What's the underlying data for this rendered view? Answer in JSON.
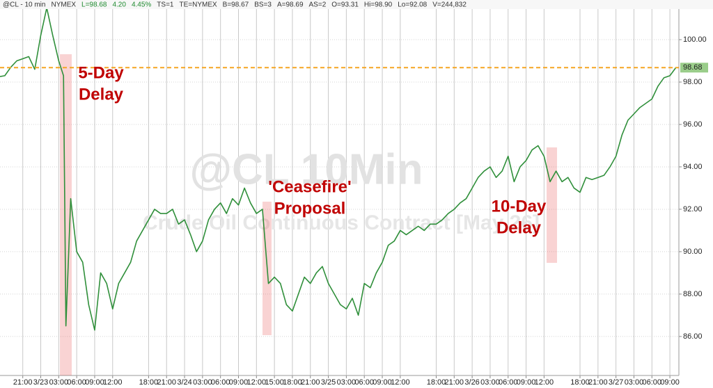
{
  "chart_data": {
    "type": "line",
    "header": [
      "@CL - 10 min",
      "NYMEX",
      "L=98.68",
      "4.20",
      "4.45%",
      "TS=1",
      "TE=NYMEX",
      "B=98.67",
      "BS=3",
      "A=98.69",
      "AS=2",
      "O=93.31",
      "Hi=98.90",
      "Lo=92.08",
      "V=244,832"
    ],
    "watermark": [
      "@CL 10Min",
      "Crude Oil Continuous Contract [May 26]"
    ],
    "annotations": [
      {
        "lines": [
          "5-Day",
          "Delay"
        ]
      },
      {
        "lines": [
          "'Ceasefire'",
          "Proposal"
        ]
      },
      {
        "lines": [
          "10-Day",
          "Delay"
        ]
      }
    ],
    "last_price": 98.68,
    "last_color": "#f5a623",
    "grid": true,
    "xlim": [
      17.2,
      130.5
    ],
    "ylim": [
      84.16,
      101.87
    ],
    "xticks": [
      {
        "value": 21,
        "label": "21:00"
      },
      {
        "value": 24,
        "label": "3/23"
      },
      {
        "value": 27,
        "label": "03:00"
      },
      {
        "value": 30,
        "label": "06:00"
      },
      {
        "value": 33,
        "label": "09:00"
      },
      {
        "value": 36,
        "label": "12:00"
      },
      {
        "value": 42,
        "label": "18:00"
      },
      {
        "value": 45,
        "label": "21:00"
      },
      {
        "value": 48,
        "label": "3/24"
      },
      {
        "value": 51,
        "label": "03:00"
      },
      {
        "value": 54,
        "label": "06:00"
      },
      {
        "value": 57,
        "label": "09:00"
      },
      {
        "value": 60,
        "label": "12:00"
      },
      {
        "value": 63,
        "label": "15:00"
      },
      {
        "value": 66,
        "label": "18:00"
      },
      {
        "value": 69,
        "label": "21:00"
      },
      {
        "value": 72,
        "label": "3/25"
      },
      {
        "value": 75,
        "label": "03:00"
      },
      {
        "value": 78,
        "label": "06:00"
      },
      {
        "value": 81,
        "label": "09:00"
      },
      {
        "value": 84,
        "label": "12:00"
      },
      {
        "value": 90,
        "label": "18:00"
      },
      {
        "value": 93,
        "label": "21:00"
      },
      {
        "value": 96,
        "label": "3/26"
      },
      {
        "value": 99,
        "label": "03:00"
      },
      {
        "value": 102,
        "label": "06:00"
      },
      {
        "value": 105,
        "label": "09:00"
      },
      {
        "value": 108,
        "label": "12:00"
      },
      {
        "value": 114,
        "label": "18:00"
      },
      {
        "value": 117,
        "label": "21:00"
      },
      {
        "value": 120,
        "label": "3/27"
      },
      {
        "value": 123,
        "label": "03:00"
      },
      {
        "value": 126,
        "label": "06:00"
      },
      {
        "value": 129,
        "label": "09:00"
      }
    ],
    "yticks": [
      {
        "value": 86,
        "label": "86.00"
      },
      {
        "value": 88,
        "label": "88.00"
      },
      {
        "value": 90,
        "label": "90.00"
      },
      {
        "value": 92,
        "label": "92.00"
      },
      {
        "value": 94,
        "label": "94.00"
      },
      {
        "value": 96,
        "label": "96.00"
      },
      {
        "value": 98,
        "label": "98.00"
      },
      {
        "value": 100,
        "label": "100.00"
      }
    ],
    "series": [
      {
        "color": "#2f8f3a",
        "x": [
          17.2,
          18,
          19,
          20,
          21,
          22,
          23,
          24,
          25,
          26,
          27,
          27.8,
          28.2,
          29,
          30,
          31,
          32,
          33,
          34,
          35,
          36,
          37,
          38,
          39,
          40,
          41,
          42,
          43,
          44,
          45,
          46,
          47,
          48,
          49,
          50,
          51,
          52,
          53,
          54,
          55,
          56,
          57,
          58,
          59,
          60,
          61,
          62,
          63,
          64,
          65,
          66,
          67,
          68,
          69,
          70,
          71,
          72,
          73,
          74,
          75,
          76,
          77,
          78,
          79,
          80,
          81,
          82,
          83,
          84,
          85,
          86,
          87,
          88,
          89,
          90,
          91,
          92,
          93,
          94,
          95,
          96,
          97,
          98,
          99,
          100,
          101,
          102,
          103,
          104,
          105,
          106,
          107,
          108,
          109,
          110,
          111,
          112,
          113,
          114,
          115,
          116,
          117,
          118,
          119,
          120,
          121,
          122,
          123,
          124,
          125,
          126,
          127,
          128,
          129,
          130
        ],
        "values": [
          98.26,
          98.3,
          98.7,
          99.0,
          99.1,
          99.2,
          98.6,
          100.2,
          101.5,
          100.2,
          99.0,
          98.3,
          86.5,
          92.5,
          90.0,
          89.5,
          87.5,
          86.3,
          89.0,
          88.5,
          87.3,
          88.5,
          89.0,
          89.5,
          90.5,
          91.0,
          91.5,
          92.0,
          91.8,
          91.8,
          92.0,
          91.3,
          91.5,
          90.8,
          90.0,
          90.5,
          91.5,
          92.0,
          92.3,
          91.8,
          92.5,
          92.2,
          93.0,
          92.3,
          91.8,
          92.0,
          88.5,
          88.8,
          88.5,
          87.5,
          87.2,
          88.0,
          88.8,
          88.5,
          89.0,
          89.3,
          88.5,
          88.0,
          87.5,
          87.3,
          87.8,
          87.0,
          88.5,
          88.3,
          89.0,
          89.5,
          90.3,
          90.5,
          91.0,
          90.8,
          91.0,
          91.2,
          91.0,
          91.3,
          91.3,
          91.5,
          91.8,
          92.0,
          92.3,
          92.5,
          93.0,
          93.5,
          93.8,
          94.0,
          93.5,
          93.8,
          94.5,
          93.3,
          94.0,
          94.3,
          94.8,
          95.0,
          94.5,
          93.3,
          93.8,
          93.3,
          93.5,
          93.0,
          92.8,
          93.5,
          93.4,
          93.5,
          93.6,
          94.0,
          94.5,
          95.5,
          96.2,
          96.5,
          96.8,
          97.0,
          97.2,
          97.8,
          98.2,
          98.3,
          98.68
        ]
      }
    ]
  }
}
